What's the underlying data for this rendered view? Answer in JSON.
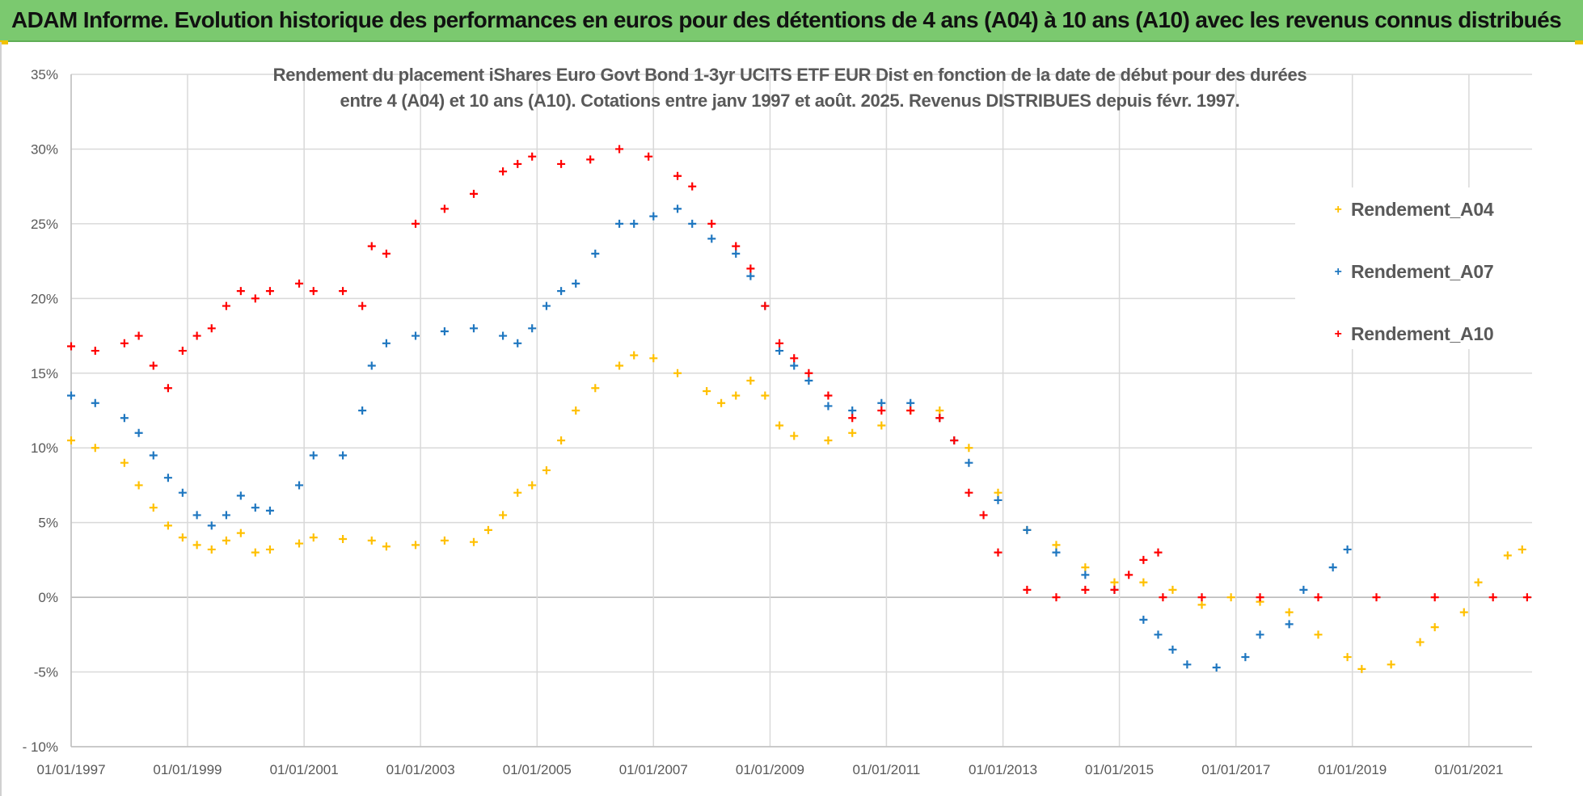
{
  "banner": {
    "title": "ADAM Informe. Evolution historique des performances en euros pour des détentions de 4 ans (A04) à 10 ans (A10) avec les revenus connus distribués"
  },
  "chart_data": {
    "type": "scatter",
    "title_line1": "Rendement du placement iShares Euro Govt Bond 1-3yr UCITS ETF EUR Dist en fonction de la date de début pour des durées",
    "title_line2": "entre 4 (A04) et 10 ans (A10). Cotations entre janv 1997 et août. 2025. Revenus DISTRIBUES depuis févr. 1997.",
    "xlabel": "",
    "ylabel": "",
    "x_ticks": [
      "01/01/1997",
      "01/01/1999",
      "01/01/2001",
      "01/01/2003",
      "01/01/2005",
      "01/01/2007",
      "01/01/2009",
      "01/01/2011",
      "01/01/2013",
      "01/01/2015",
      "01/01/2017",
      "01/01/2019",
      "01/01/2021"
    ],
    "y_ticks": [
      "35%",
      "30%",
      "25%",
      "20%",
      "15%",
      "10%",
      "5%",
      "0%",
      "-5%",
      "- 10%"
    ],
    "xlim": [
      "1997-01-01",
      "2022-02-01"
    ],
    "ylim": [
      -10,
      35
    ],
    "grid": true,
    "legend_position": "right",
    "series": [
      {
        "name": "Rendement_A04",
        "color": "#ffc000",
        "marker": "+",
        "points": [
          [
            "1997-01-01",
            10.5
          ],
          [
            "1997-06-01",
            10.0
          ],
          [
            "1997-12-01",
            9.0
          ],
          [
            "1998-03-01",
            7.5
          ],
          [
            "1998-06-01",
            6.0
          ],
          [
            "1998-09-01",
            4.8
          ],
          [
            "1998-12-01",
            4.0
          ],
          [
            "1999-03-01",
            3.5
          ],
          [
            "1999-06-01",
            3.2
          ],
          [
            "1999-09-01",
            3.8
          ],
          [
            "1999-12-01",
            4.3
          ],
          [
            "2000-03-01",
            3.0
          ],
          [
            "2000-06-01",
            3.2
          ],
          [
            "2000-12-01",
            3.6
          ],
          [
            "2001-03-01",
            4.0
          ],
          [
            "2001-09-01",
            3.9
          ],
          [
            "2002-03-01",
            3.8
          ],
          [
            "2002-06-01",
            3.4
          ],
          [
            "2002-12-01",
            3.5
          ],
          [
            "2003-06-01",
            3.8
          ],
          [
            "2003-12-01",
            3.7
          ],
          [
            "2004-03-01",
            4.5
          ],
          [
            "2004-06-01",
            5.5
          ],
          [
            "2004-09-01",
            7.0
          ],
          [
            "2004-12-01",
            7.5
          ],
          [
            "2005-03-01",
            8.5
          ],
          [
            "2005-06-01",
            10.5
          ],
          [
            "2005-09-01",
            12.5
          ],
          [
            "2006-01-01",
            14.0
          ],
          [
            "2006-06-01",
            15.5
          ],
          [
            "2006-09-01",
            16.2
          ],
          [
            "2007-01-01",
            16.0
          ],
          [
            "2007-06-01",
            15.0
          ],
          [
            "2007-12-01",
            13.8
          ],
          [
            "2008-03-01",
            13.0
          ],
          [
            "2008-06-01",
            13.5
          ],
          [
            "2008-09-01",
            14.5
          ],
          [
            "2008-12-01",
            13.5
          ],
          [
            "2009-03-01",
            11.5
          ],
          [
            "2009-06-01",
            10.8
          ],
          [
            "2010-01-01",
            10.5
          ],
          [
            "2010-06-01",
            11.0
          ],
          [
            "2010-12-01",
            11.5
          ],
          [
            "2011-06-01",
            12.5
          ],
          [
            "2011-12-01",
            12.5
          ],
          [
            "2012-06-01",
            10.0
          ],
          [
            "2012-12-01",
            7.0
          ],
          [
            "2013-06-01",
            4.5
          ],
          [
            "2013-12-01",
            3.5
          ],
          [
            "2014-06-01",
            2.0
          ],
          [
            "2014-12-01",
            1.0
          ],
          [
            "2015-06-01",
            1.0
          ],
          [
            "2015-12-01",
            0.5
          ],
          [
            "2016-06-01",
            -0.5
          ],
          [
            "2016-12-01",
            0.0
          ],
          [
            "2017-06-01",
            -0.3
          ],
          [
            "2017-12-01",
            -1.0
          ],
          [
            "2018-06-01",
            -2.5
          ],
          [
            "2018-12-01",
            -4.0
          ],
          [
            "2019-03-01",
            -4.8
          ],
          [
            "2019-09-01",
            -4.5
          ],
          [
            "2020-03-01",
            -3.0
          ],
          [
            "2020-06-01",
            -2.0
          ],
          [
            "2020-12-01",
            -1.0
          ],
          [
            "2021-03-01",
            1.0
          ],
          [
            "2021-09-01",
            2.8
          ],
          [
            "2021-12-01",
            3.2
          ]
        ]
      },
      {
        "name": "Rendement_A07",
        "color": "#1f77c0",
        "marker": "+",
        "points": [
          [
            "1997-01-01",
            13.5
          ],
          [
            "1997-06-01",
            13.0
          ],
          [
            "1997-12-01",
            12.0
          ],
          [
            "1998-03-01",
            11.0
          ],
          [
            "1998-06-01",
            9.5
          ],
          [
            "1998-09-01",
            8.0
          ],
          [
            "1998-12-01",
            7.0
          ],
          [
            "1999-03-01",
            5.5
          ],
          [
            "1999-06-01",
            4.8
          ],
          [
            "1999-09-01",
            5.5
          ],
          [
            "1999-12-01",
            6.8
          ],
          [
            "2000-03-01",
            6.0
          ],
          [
            "2000-06-01",
            5.8
          ],
          [
            "2000-12-01",
            7.5
          ],
          [
            "2001-03-01",
            9.5
          ],
          [
            "2001-09-01",
            9.5
          ],
          [
            "2002-01-01",
            12.5
          ],
          [
            "2002-03-01",
            15.5
          ],
          [
            "2002-06-01",
            17.0
          ],
          [
            "2002-12-01",
            17.5
          ],
          [
            "2003-06-01",
            17.8
          ],
          [
            "2003-12-01",
            18.0
          ],
          [
            "2004-06-01",
            17.5
          ],
          [
            "2004-09-01",
            17.0
          ],
          [
            "2004-12-01",
            18.0
          ],
          [
            "2005-03-01",
            19.5
          ],
          [
            "2005-06-01",
            20.5
          ],
          [
            "2005-09-01",
            21.0
          ],
          [
            "2006-01-01",
            23.0
          ],
          [
            "2006-06-01",
            25.0
          ],
          [
            "2006-09-01",
            25.0
          ],
          [
            "2007-01-01",
            25.5
          ],
          [
            "2007-06-01",
            26.0
          ],
          [
            "2007-09-01",
            25.0
          ],
          [
            "2008-01-01",
            24.0
          ],
          [
            "2008-06-01",
            23.0
          ],
          [
            "2008-09-01",
            21.5
          ],
          [
            "2008-12-01",
            19.5
          ],
          [
            "2009-03-01",
            16.5
          ],
          [
            "2009-06-01",
            15.5
          ],
          [
            "2009-09-01",
            14.5
          ],
          [
            "2010-01-01",
            12.8
          ],
          [
            "2010-06-01",
            12.5
          ],
          [
            "2010-12-01",
            13.0
          ],
          [
            "2011-06-01",
            13.0
          ],
          [
            "2011-12-01",
            12.0
          ],
          [
            "2012-03-01",
            10.5
          ],
          [
            "2012-06-01",
            9.0
          ],
          [
            "2012-12-01",
            6.5
          ],
          [
            "2013-06-01",
            4.5
          ],
          [
            "2013-12-01",
            3.0
          ],
          [
            "2014-06-01",
            1.5
          ],
          [
            "2014-12-01",
            0.5
          ],
          [
            "2015-06-01",
            -1.5
          ],
          [
            "2015-09-01",
            -2.5
          ],
          [
            "2015-12-01",
            -3.5
          ],
          [
            "2016-03-01",
            -4.5
          ],
          [
            "2016-09-01",
            -4.7
          ],
          [
            "2017-03-01",
            -4.0
          ],
          [
            "2017-06-01",
            -2.5
          ],
          [
            "2017-12-01",
            -1.8
          ],
          [
            "2018-03-01",
            0.5
          ],
          [
            "2018-09-01",
            2.0
          ],
          [
            "2018-12-01",
            3.2
          ]
        ]
      },
      {
        "name": "Rendement_A10",
        "color": "#ff0000",
        "marker": "+",
        "points": [
          [
            "1997-01-01",
            16.8
          ],
          [
            "1997-06-01",
            16.5
          ],
          [
            "1997-12-01",
            17.0
          ],
          [
            "1998-03-01",
            17.5
          ],
          [
            "1998-06-01",
            15.5
          ],
          [
            "1998-09-01",
            14.0
          ],
          [
            "1998-12-01",
            16.5
          ],
          [
            "1999-03-01",
            17.5
          ],
          [
            "1999-06-01",
            18.0
          ],
          [
            "1999-09-01",
            19.5
          ],
          [
            "1999-12-01",
            20.5
          ],
          [
            "2000-03-01",
            20.0
          ],
          [
            "2000-06-01",
            20.5
          ],
          [
            "2000-12-01",
            21.0
          ],
          [
            "2001-03-01",
            20.5
          ],
          [
            "2001-09-01",
            20.5
          ],
          [
            "2002-01-01",
            19.5
          ],
          [
            "2002-03-01",
            23.5
          ],
          [
            "2002-06-01",
            23.0
          ],
          [
            "2002-12-01",
            25.0
          ],
          [
            "2003-06-01",
            26.0
          ],
          [
            "2003-12-01",
            27.0
          ],
          [
            "2004-06-01",
            28.5
          ],
          [
            "2004-09-01",
            29.0
          ],
          [
            "2004-12-01",
            29.5
          ],
          [
            "2005-06-01",
            29.0
          ],
          [
            "2005-12-01",
            29.3
          ],
          [
            "2006-06-01",
            30.0
          ],
          [
            "2006-12-01",
            29.5
          ],
          [
            "2007-06-01",
            28.2
          ],
          [
            "2007-09-01",
            27.5
          ],
          [
            "2008-01-01",
            25.0
          ],
          [
            "2008-06-01",
            23.5
          ],
          [
            "2008-09-01",
            22.0
          ],
          [
            "2008-12-01",
            19.5
          ],
          [
            "2009-03-01",
            17.0
          ],
          [
            "2009-06-01",
            16.0
          ],
          [
            "2009-09-01",
            15.0
          ],
          [
            "2010-01-01",
            13.5
          ],
          [
            "2010-06-01",
            12.0
          ],
          [
            "2010-12-01",
            12.5
          ],
          [
            "2011-06-01",
            12.5
          ],
          [
            "2011-12-01",
            12.0
          ],
          [
            "2012-03-01",
            10.5
          ],
          [
            "2012-06-01",
            7.0
          ],
          [
            "2012-09-01",
            5.5
          ],
          [
            "2012-12-01",
            3.0
          ],
          [
            "2013-06-01",
            0.5
          ],
          [
            "2013-12-01",
            0.0
          ],
          [
            "2014-06-01",
            0.5
          ],
          [
            "2014-12-01",
            0.5
          ],
          [
            "2015-03-01",
            1.5
          ],
          [
            "2015-06-01",
            2.5
          ],
          [
            "2015-09-01",
            3.0
          ],
          [
            "2015-10-01",
            0.0
          ],
          [
            "2016-06-01",
            0.0
          ],
          [
            "2017-06-01",
            0.0
          ],
          [
            "2018-06-01",
            0.0
          ],
          [
            "2019-06-01",
            0.0
          ],
          [
            "2020-06-01",
            0.0
          ],
          [
            "2021-06-01",
            0.0
          ],
          [
            "2022-01-01",
            0.0
          ]
        ]
      }
    ]
  }
}
